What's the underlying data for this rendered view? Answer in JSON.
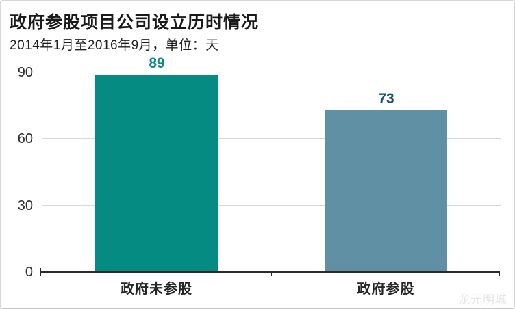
{
  "header": {
    "title": "政府参股项目公司设立历时情况",
    "subtitle": "2014年1月至2016年9月，单位：天"
  },
  "watermark": "龙元明城",
  "chart_data": {
    "type": "bar",
    "title": "政府参股项目公司设立历时情况",
    "subtitle": "2014年1月至2016年9月，单位：天",
    "unit": "天",
    "categories": [
      "政府未参股",
      "政府参股"
    ],
    "values": [
      89,
      73
    ],
    "yticks": [
      0,
      30,
      60,
      90
    ],
    "ylim": [
      0,
      92
    ],
    "grid": true,
    "legend": false,
    "bar_colors": [
      "#058b81",
      "#5f90a4"
    ],
    "value_label_colors": [
      "#0c8a80",
      "#175169"
    ],
    "axis_color": "#2b2b2b",
    "gridline_color": "#d9d9d9"
  }
}
